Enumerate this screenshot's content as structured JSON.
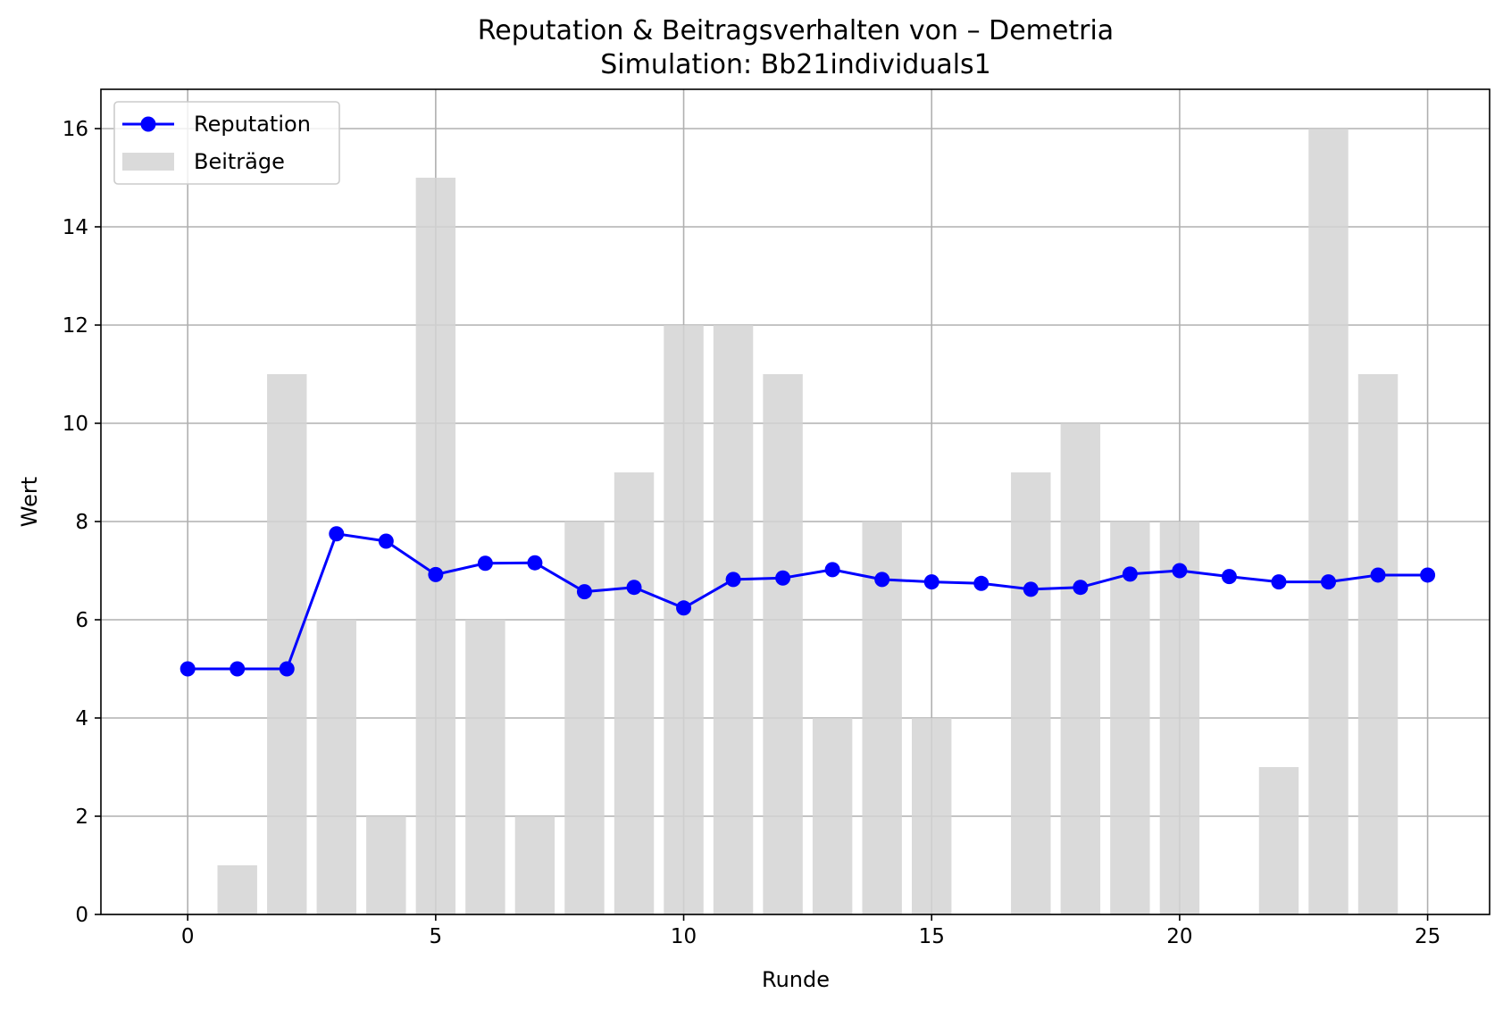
{
  "chart_data": {
    "type": "bar+line",
    "title": "Reputation & Beitragsverhalten von – Demetria",
    "subtitle": "Simulation: Bb21individuals1",
    "xlabel": "Runde",
    "ylabel": "Wert",
    "xlim": [
      -1.75,
      26.25
    ],
    "ylim": [
      0,
      16.8
    ],
    "xticks": [
      0,
      5,
      10,
      15,
      20,
      25
    ],
    "yticks": [
      0,
      2,
      4,
      6,
      8,
      10,
      12,
      14,
      16
    ],
    "grid": true,
    "legend_position": "top-left",
    "x": [
      0,
      1,
      2,
      3,
      4,
      5,
      6,
      7,
      8,
      9,
      10,
      11,
      12,
      13,
      14,
      15,
      16,
      17,
      18,
      19,
      20,
      21,
      22,
      23,
      24,
      25
    ],
    "series": [
      {
        "name": "Reputation",
        "kind": "line",
        "color": "#0000ff",
        "marker": "circle",
        "values": [
          5.0,
          5.0,
          5.0,
          7.75,
          7.6,
          6.92,
          7.15,
          7.16,
          6.57,
          6.66,
          6.24,
          6.82,
          6.85,
          7.02,
          6.82,
          6.77,
          6.74,
          6.62,
          6.66,
          6.93,
          7.0,
          6.88,
          6.77,
          6.77,
          6.91,
          6.91
        ]
      },
      {
        "name": "Beiträge",
        "kind": "bar",
        "color": "#d3d3d3",
        "values": [
          0,
          1,
          11,
          6,
          2,
          15,
          6,
          2,
          8,
          9,
          12,
          12,
          11,
          4,
          8,
          4,
          0,
          9,
          10,
          8,
          8,
          0,
          3,
          16,
          11,
          0
        ]
      }
    ]
  }
}
